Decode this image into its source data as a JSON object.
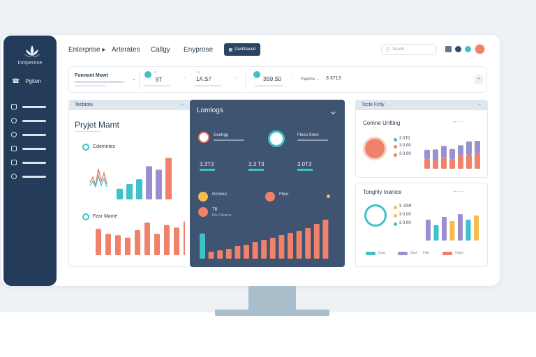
{
  "sidebar": {
    "logo_text": "Inmpernse",
    "profile_label": "Pgiten",
    "nav_icons": [
      "chart-icon",
      "globe-icon",
      "target-icon",
      "shield-icon",
      "folder-icon",
      "help-icon"
    ]
  },
  "topbar": {
    "nav": [
      "Enterprise ▸",
      "Arterates",
      "Callgy",
      "Enyprose"
    ],
    "dashboard_label": "Dashbaced",
    "search_placeholder": "Seach"
  },
  "stats": [
    {
      "label": "Fonnont Mowt",
      "value": ""
    },
    {
      "label": "a",
      "value": "8T"
    },
    {
      "label": "a",
      "value": "1A.S7"
    },
    {
      "label": "",
      "value": "3S9.S0"
    },
    {
      "label": "Fapcho ⌄",
      "value": "3 3713"
    }
  ],
  "left_card": {
    "header": "Tecbiotu",
    "title": "Pryjet Mamt",
    "sub1": "Cdemntes",
    "sub2": "Fasr Mante"
  },
  "dark_card": {
    "header": "Lomlogs",
    "a_label": "Gsohgg",
    "b_label": "Fteco Snoe",
    "m1": "3.3T3",
    "m2": "3.3 T3",
    "m3": "3.0T3",
    "c_label": "Gcmoul",
    "d_label": "Fbco",
    "e_label": "TB",
    "e_sub": "Ete Ctcnene"
  },
  "right_top": {
    "header": "Tccle Fclty",
    "title": "Comne Unfting",
    "v1": "3 0T0",
    "v2": "3 0.00",
    "v3": "3 0.00"
  },
  "right_bottom": {
    "title": "Tonghly Inanice",
    "v1": "3 .0S9",
    "v2": "3 0.00",
    "v3": "3 0.00",
    "legend": [
      "Scai",
      "Ssol",
      "Fdit",
      "Cdoe"
    ]
  },
  "colors": {
    "coral": "#f0816a",
    "teal": "#3fc1c9",
    "purple": "#9b8fd1",
    "navy": "#243b5a",
    "yellow": "#f6bd4f"
  },
  "chart_data": [
    {
      "type": "bar",
      "name": "left-top",
      "values": [
        18,
        26,
        34,
        56,
        50,
        70
      ]
    },
    {
      "type": "bar",
      "name": "left-bottom",
      "values": [
        42,
        34,
        32,
        28,
        40,
        52,
        34,
        48,
        44,
        54
      ]
    },
    {
      "type": "bar",
      "name": "dark-bottom",
      "values": [
        36,
        10,
        12,
        14,
        18,
        20,
        24,
        27,
        30,
        34,
        37,
        40,
        44,
        50,
        56
      ]
    },
    {
      "type": "bar",
      "name": "right-top",
      "series": [
        [
          14,
          22
        ],
        [
          12,
          26
        ],
        [
          16,
          28
        ],
        [
          14,
          24
        ],
        [
          18,
          26
        ],
        [
          20,
          32
        ],
        [
          22,
          30
        ]
      ]
    },
    {
      "type": "bar",
      "name": "right-bottom",
      "values": [
        30,
        22,
        34,
        28,
        38,
        30,
        36
      ]
    }
  ]
}
